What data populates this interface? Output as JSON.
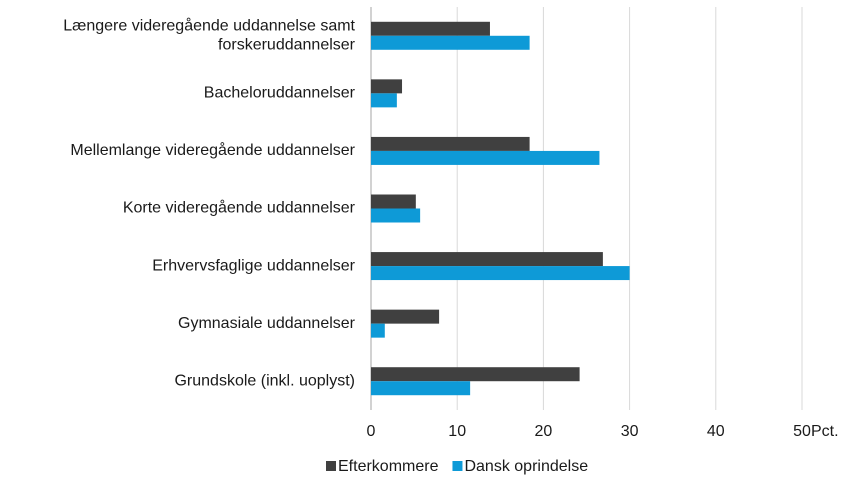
{
  "chart_data": {
    "type": "bar",
    "orientation": "horizontal",
    "categories": [
      "Længere videregående uddannelse samt forskeruddannelser",
      "Bacheloruddannelser",
      "Mellemlange videregående uddannelser",
      "Korte videregående uddannelser",
      "Erhvervsfaglige uddannelser",
      "Gymnasiale uddannelser",
      "Grundskole (inkl. uoplyst)"
    ],
    "series": [
      {
        "name": "Efterkommere",
        "color": "#404040",
        "values": [
          13.8,
          3.6,
          18.4,
          5.2,
          26.9,
          7.9,
          24.2
        ]
      },
      {
        "name": "Dansk oprindelse",
        "color": "#0e9ad7",
        "values": [
          18.4,
          3.0,
          26.5,
          5.7,
          30.0,
          1.6,
          11.5
        ]
      }
    ],
    "x_label": "Pct.",
    "xlim": [
      0,
      50
    ],
    "xticks": [
      0,
      10,
      20,
      30,
      40,
      50
    ],
    "grid": true,
    "legend": "bottom"
  }
}
